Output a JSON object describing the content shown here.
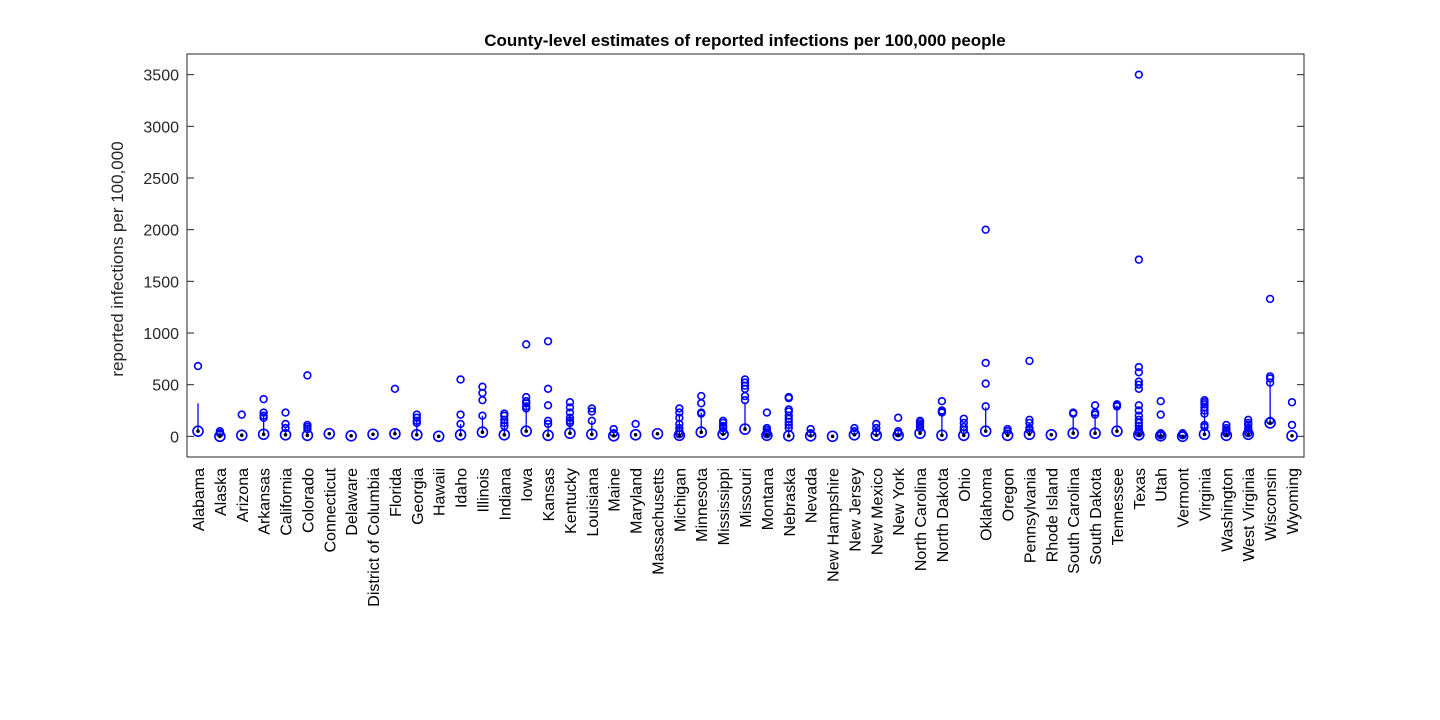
{
  "chart_data": {
    "type": "boxplot",
    "title": "County-level estimates of reported infections per 100,000 people",
    "xlabel": "",
    "ylabel": "reported infections per 100,000",
    "ylim": [
      -200,
      3700
    ],
    "yticks": [
      0,
      500,
      1000,
      1500,
      2000,
      2500,
      3000,
      3500
    ],
    "ytick_labels": [
      "0",
      "500",
      "1000",
      "1500",
      "2000",
      "2500",
      "3000",
      "3500"
    ],
    "grid": false,
    "legend": "none",
    "colors": {
      "marker": "#0000ff",
      "median": "#000000",
      "axis": "#262626"
    },
    "categories": [
      "Alabama",
      "Alaska",
      "Arizona",
      "Arkansas",
      "California",
      "Colorado",
      "Connecticut",
      "Delaware",
      "District of Columbia",
      "Florida",
      "Georgia",
      "Hawaii",
      "Idaho",
      "Illinois",
      "Indiana",
      "Iowa",
      "Kansas",
      "Kentucky",
      "Louisiana",
      "Maine",
      "Maryland",
      "Massachusetts",
      "Michigan",
      "Minnesota",
      "Mississippi",
      "Missouri",
      "Montana",
      "Nebraska",
      "Nevada",
      "New Hampshire",
      "New Jersey",
      "New Mexico",
      "New York",
      "North Carolina",
      "North Dakota",
      "Ohio",
      "Oklahoma",
      "Oregon",
      "Pennsylvania",
      "Rhode Island",
      "South Carolina",
      "South Dakota",
      "Tennessee",
      "Texas",
      "Utah",
      "Vermont",
      "Virginia",
      "Washington",
      "West Virginia",
      "Wisconsin",
      "Wyoming"
    ],
    "medians": [
      50,
      0,
      10,
      20,
      15,
      10,
      25,
      5,
      20,
      25,
      15,
      0,
      15,
      40,
      15,
      50,
      10,
      30,
      20,
      5,
      15,
      25,
      10,
      40,
      20,
      70,
      10,
      5,
      5,
      0,
      15,
      10,
      10,
      30,
      10,
      10,
      50,
      10,
      20,
      15,
      30,
      30,
      50,
      15,
      5,
      0,
      20,
      10,
      20,
      130,
      5
    ],
    "whisker_high": [
      320,
      40,
      30,
      200,
      80,
      100,
      25,
      10,
      25,
      70,
      180,
      5,
      120,
      200,
      160,
      300,
      130,
      200,
      150,
      40,
      30,
      25,
      200,
      230,
      120,
      330,
      50,
      150,
      50,
      5,
      60,
      80,
      50,
      150,
      220,
      80,
      280,
      60,
      130,
      15,
      200,
      220,
      300,
      120,
      40,
      10,
      250,
      100,
      130,
      520,
      10
    ],
    "outliers": [
      [
        680
      ],
      [
        50,
        30
      ],
      [
        210
      ],
      [
        360,
        230,
        200,
        180
      ],
      [
        230,
        120,
        80
      ],
      [
        590,
        110,
        90,
        70
      ],
      [],
      [],
      [],
      [
        460
      ],
      [
        210,
        180,
        150,
        130
      ],
      [],
      [
        550,
        210,
        120
      ],
      [
        480,
        420,
        350,
        200
      ],
      [
        220,
        200,
        160,
        130,
        100
      ],
      [
        890,
        380,
        340,
        320,
        290,
        270
      ],
      [
        920,
        460,
        300,
        150,
        120
      ],
      [
        330,
        280,
        230,
        180,
        150,
        130
      ],
      [
        270,
        240,
        150
      ],
      [
        70,
        30
      ],
      [
        120
      ],
      [],
      [
        270,
        230,
        180,
        120,
        80,
        50,
        20
      ],
      [
        390,
        320,
        230,
        220
      ],
      [
        150,
        130,
        100,
        80,
        50
      ],
      [
        550,
        520,
        490,
        460,
        390,
        350
      ],
      [
        230,
        80,
        60,
        40,
        20
      ],
      [
        380,
        370,
        260,
        240,
        200,
        170,
        140,
        110,
        80
      ],
      [
        70,
        30
      ],
      [],
      [
        80,
        50
      ],
      [
        120,
        80,
        40
      ],
      [
        180,
        50,
        30
      ],
      [
        150,
        140,
        120,
        100,
        80
      ],
      [
        340,
        250,
        240,
        230
      ],
      [
        170,
        130,
        90,
        60
      ],
      [
        2000,
        710,
        510,
        290
      ],
      [
        70,
        50
      ],
      [
        730,
        160,
        130,
        80,
        60
      ],
      [],
      [
        230,
        220
      ],
      [
        300,
        230,
        210
      ],
      [
        310,
        300,
        290
      ],
      [
        3500,
        1710,
        670,
        620,
        530,
        500,
        460,
        300,
        250,
        200,
        160,
        130,
        100,
        70,
        50,
        30
      ],
      [
        340,
        210,
        30,
        20,
        10
      ],
      [
        30,
        10
      ],
      [
        350,
        330,
        310,
        280,
        250,
        220,
        110,
        90
      ],
      [
        110,
        80,
        60,
        50,
        30
      ],
      [
        160,
        130,
        110,
        80,
        60,
        30
      ],
      [
        1330,
        580,
        560,
        520,
        150
      ],
      [
        330,
        110
      ]
    ]
  }
}
